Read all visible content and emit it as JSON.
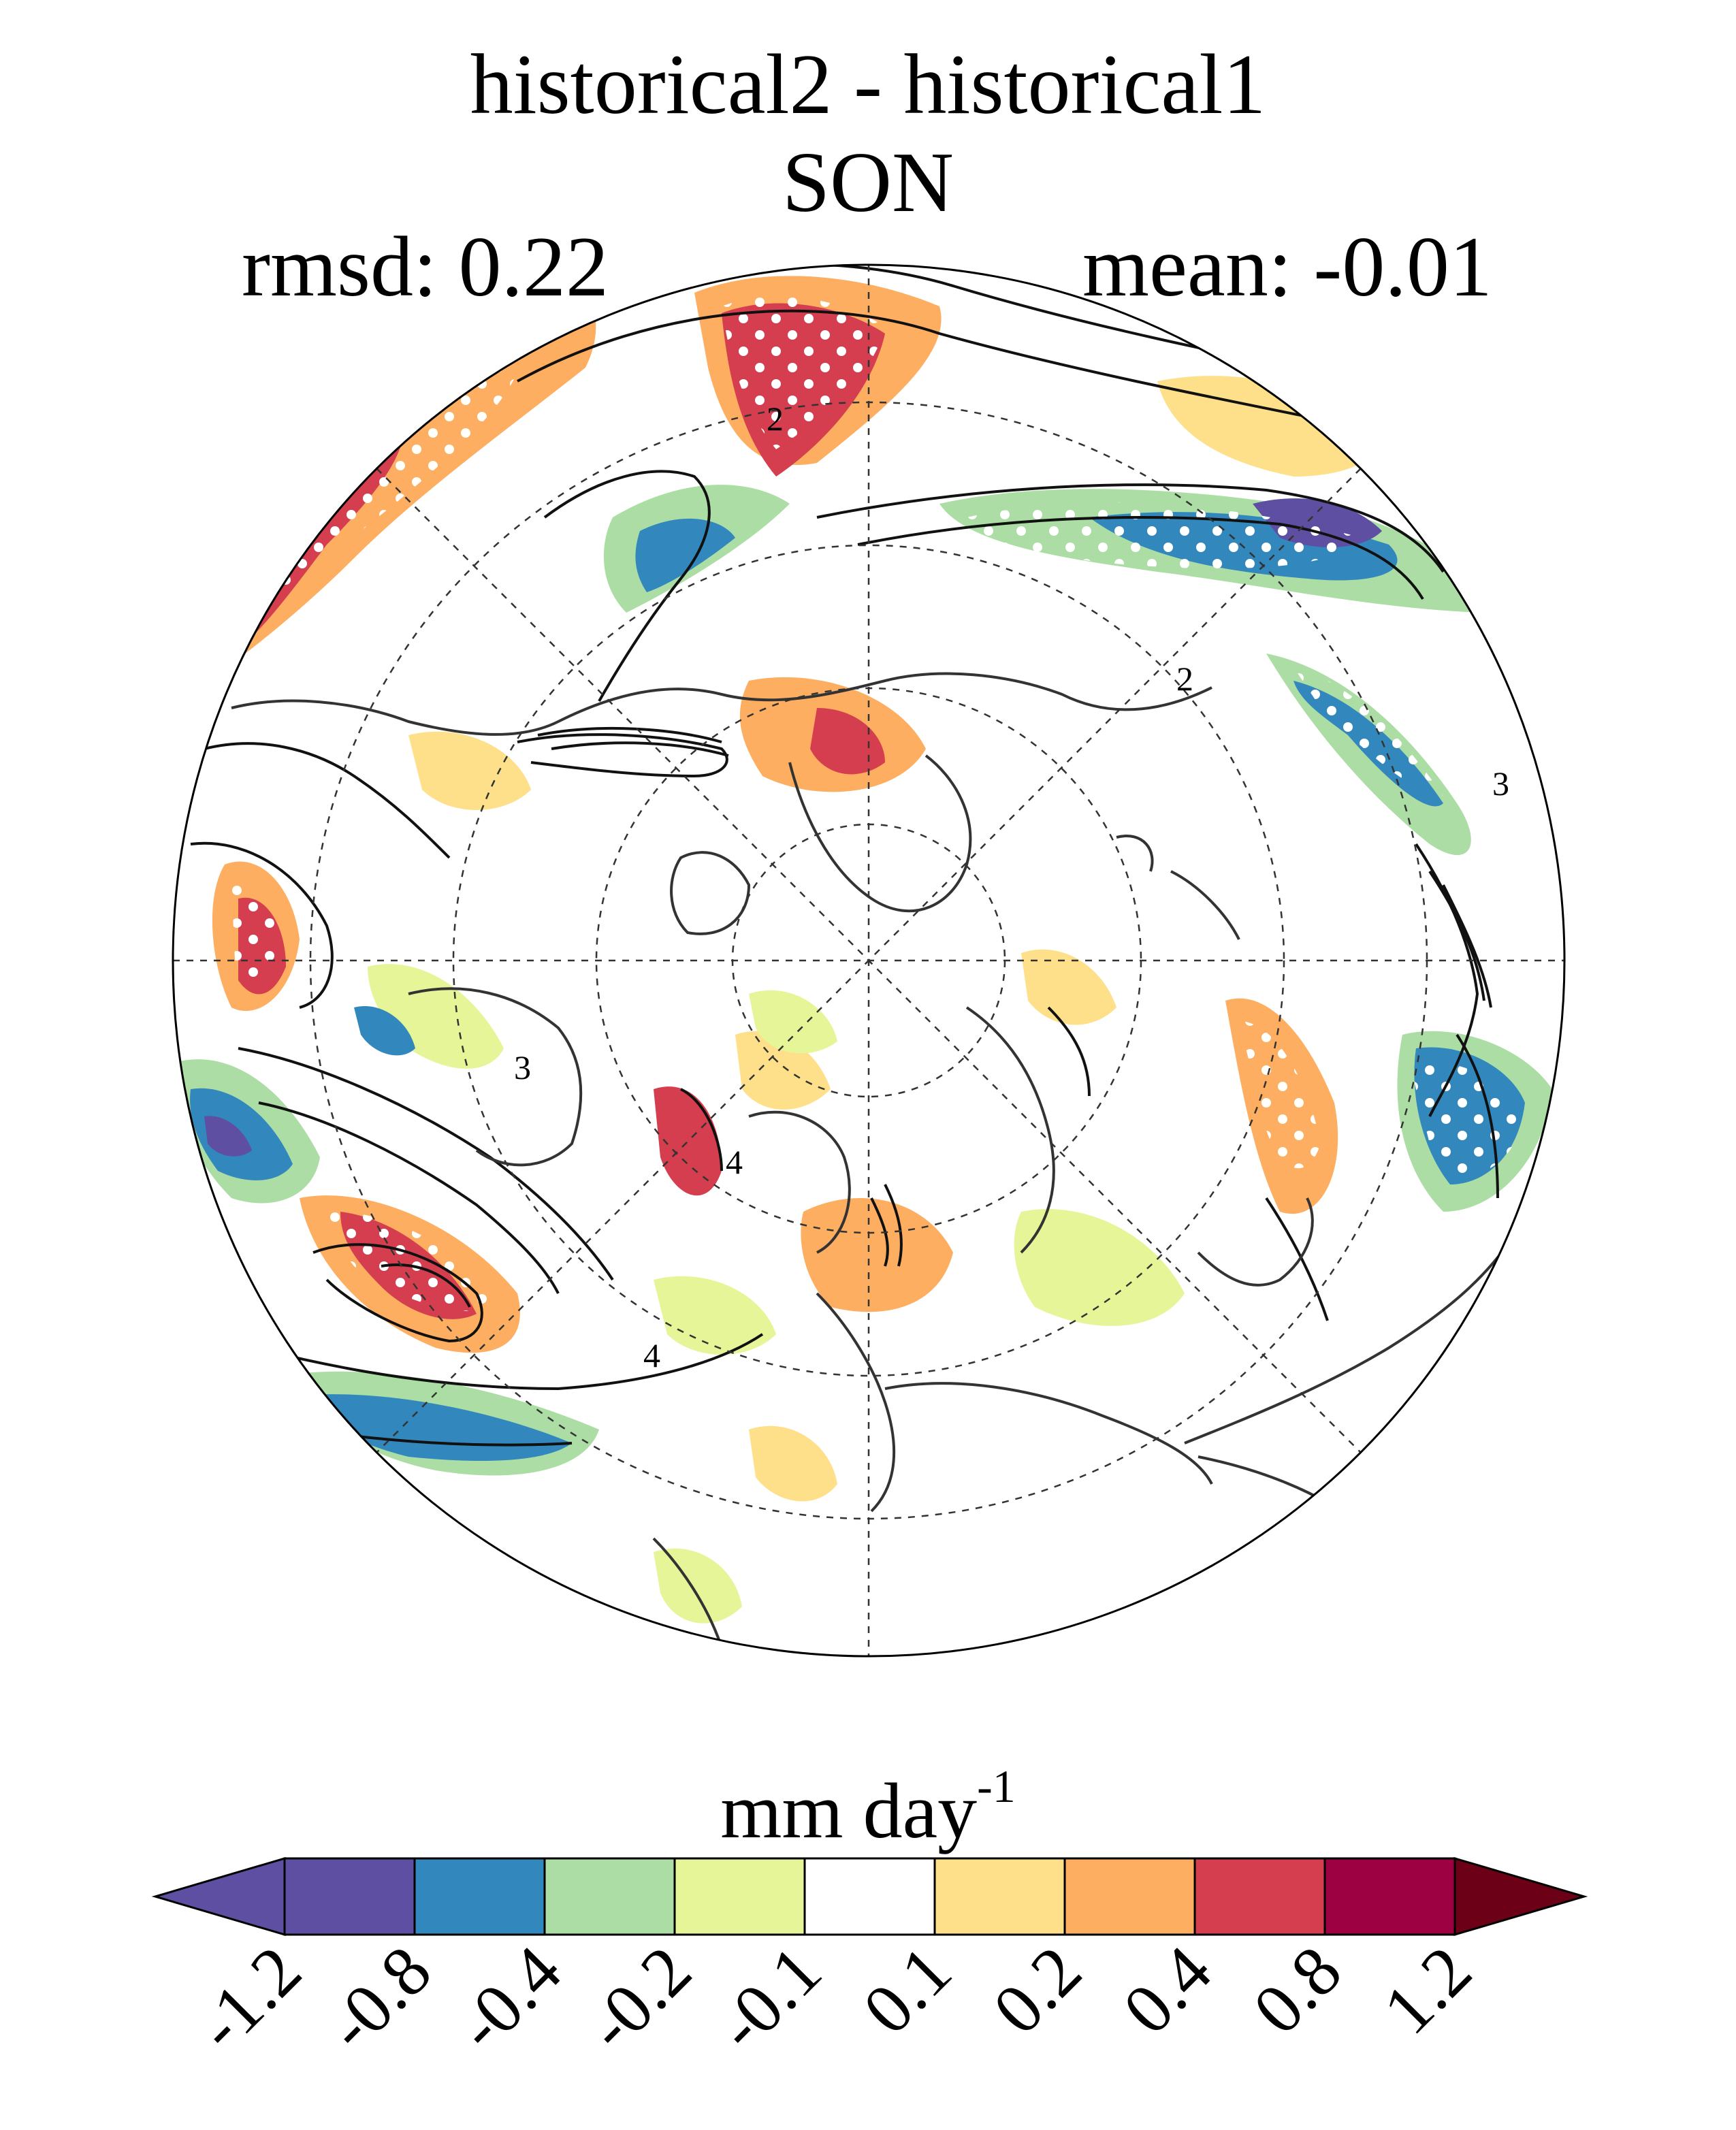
{
  "title": {
    "line1": "historical2 - historical1",
    "line2": "SON"
  },
  "stats": {
    "rmsd": "rmsd: 0.22",
    "mean": "mean: -0.01"
  },
  "map": {
    "projection": "north polar stereographic",
    "contour_labels": [
      "2",
      "2",
      "3",
      "3",
      "4",
      "4"
    ]
  },
  "colorbar": {
    "units_main": "mm day",
    "units_exp": "-1",
    "ticks": [
      "-1.2",
      "-0.8",
      "-0.4",
      "-0.2",
      "-0.1",
      "0.1",
      "0.2",
      "0.4",
      "0.8",
      "1.2"
    ],
    "colors": [
      "#5e4fa2",
      "#5e4fa2",
      "#3288bd",
      "#abdda4",
      "#e6f598",
      "#ffffff",
      "#fee08b",
      "#fdae61",
      "#d53e4f",
      "#9e0142",
      "#6b0016"
    ]
  }
}
